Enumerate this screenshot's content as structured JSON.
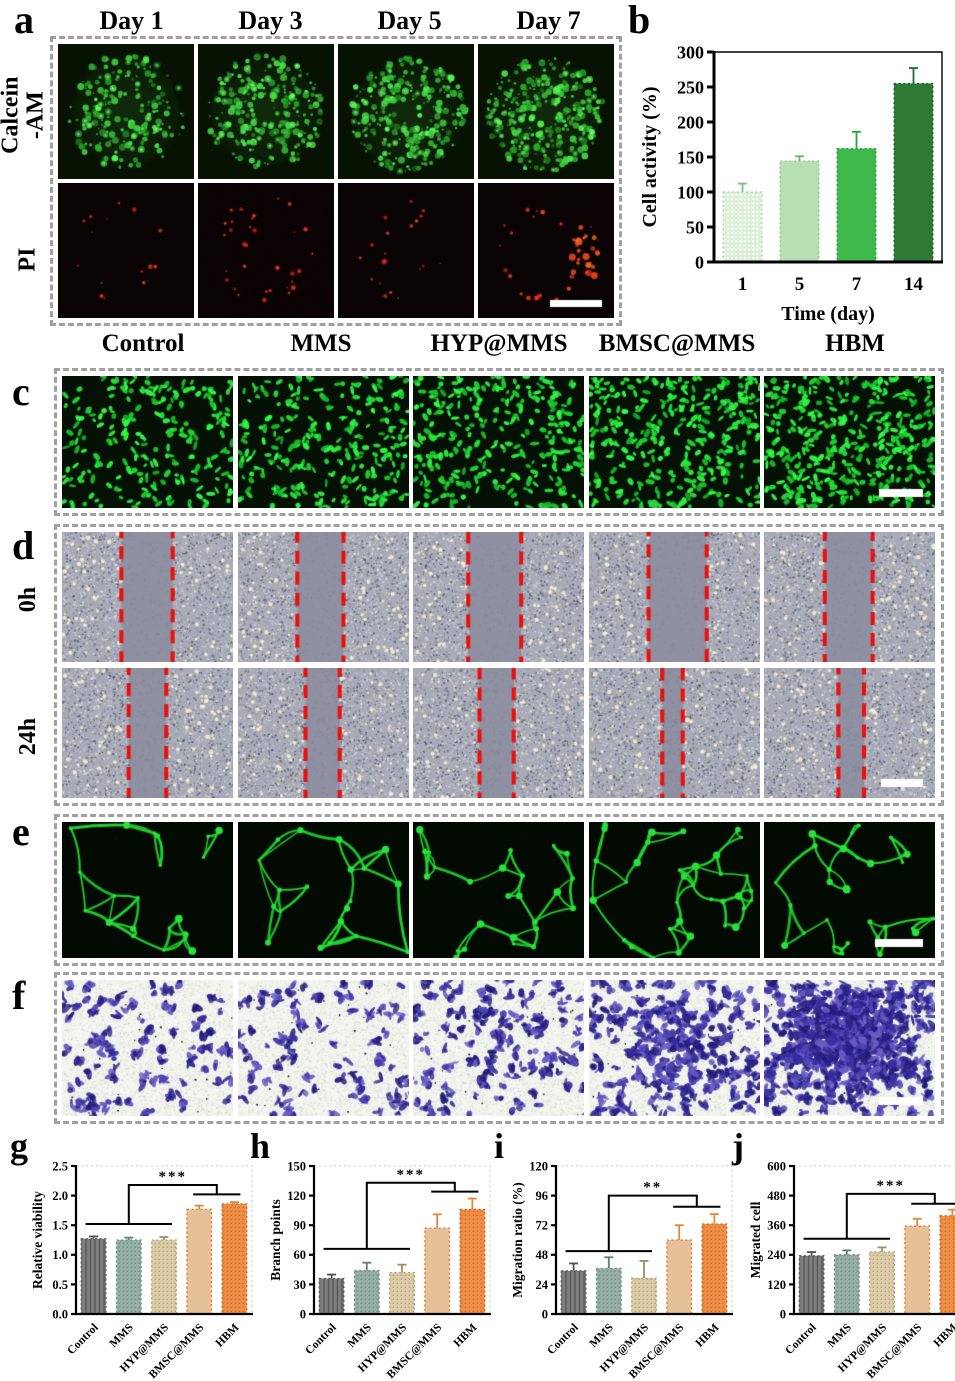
{
  "letters": {
    "a": "a",
    "b": "b",
    "c": "c",
    "d": "d",
    "e": "e",
    "f": "f",
    "g": "g",
    "h": "h",
    "i": "i",
    "j": "j"
  },
  "panel_a": {
    "column_labels": [
      "Day 1",
      "Day 3",
      "Day 5",
      "Day 7"
    ],
    "row_label_calcein_line1": "Calcein",
    "row_label_calcein_line2": "-AM",
    "row_label_pi": "PI"
  },
  "group_labels": [
    "Control",
    "MMS",
    "HYP@MMS",
    "BMSC@MMS",
    "HBM"
  ],
  "panel_d": {
    "row_labels": [
      "0h",
      "24h"
    ]
  },
  "accent_colors": {
    "wound_edge_red": "#ea0f0c",
    "scale_bar": "#ffffff",
    "dashed_border": "#a0a0a0"
  },
  "chart_data": [
    {
      "panel": "b",
      "type": "bar",
      "categories": [
        "1",
        "5",
        "7",
        "14"
      ],
      "values": [
        100,
        144,
        162,
        255
      ],
      "errors": [
        12,
        7,
        24,
        22
      ],
      "title": "",
      "xlabel": "Time (day)",
      "ylabel": "Cell activity (%)",
      "ylim": [
        0,
        300
      ],
      "yticks": [
        "0",
        "50",
        "100",
        "150",
        "200",
        "250",
        "300"
      ],
      "colors": [
        "#ddefd8",
        "#b7dfb2",
        "#3cb94a",
        "#2c7a33"
      ],
      "strokes": [
        "#a9d8a0",
        "#8cc98a",
        "#2f9e3b",
        "#1f5c26"
      ],
      "err_colors": [
        "#7fbf7f",
        "#63b863",
        "#28a332",
        "#1f6b28"
      ],
      "patterns": [
        "dl",
        "none",
        "none",
        "none"
      ],
      "sig": null
    },
    {
      "panel": "g",
      "type": "bar",
      "categories": [
        "Control",
        "MMS",
        "HYP@MMS",
        "BMSC@MMS",
        "HBM"
      ],
      "values": [
        1.27,
        1.25,
        1.25,
        1.77,
        1.86
      ],
      "errors": [
        0.04,
        0.04,
        0.05,
        0.06,
        0.03
      ],
      "title": "",
      "xlabel": "",
      "ylabel": "Relative viability",
      "ylim": [
        0,
        2.5
      ],
      "yticks": [
        "0.0",
        "0.5",
        "1.0",
        "1.5",
        "2.0",
        "2.5"
      ],
      "colors": [
        "#7f7f7f",
        "#95aea6",
        "#dbcba5",
        "#e6c098",
        "#f08d44"
      ],
      "strokes": [
        "#5a5a5a",
        "#6e8c82",
        "#b3a076",
        "#e07b2a",
        "#cf6716"
      ],
      "err_colors": [
        "#4f4f4f",
        "#5f7d74",
        "#a08d62",
        "#e2873b",
        "#e2873b"
      ],
      "patterns": [
        "vs",
        "dt",
        "dt",
        "none",
        "dt"
      ],
      "sig": {
        "label": "***",
        "low": [
          0,
          2
        ],
        "high": [
          3,
          4
        ],
        "lowY": 1.52,
        "highY": 2.02,
        "topY": 2.18
      }
    },
    {
      "panel": "h",
      "type": "bar",
      "categories": [
        "Control",
        "MMS",
        "HYP@MMS",
        "BMSC@MMS",
        "HBM"
      ],
      "values": [
        36,
        44,
        42,
        87,
        106
      ],
      "errors": [
        4,
        8,
        8,
        14,
        11
      ],
      "title": "",
      "xlabel": "",
      "ylabel": "Branch points",
      "ylim": [
        0,
        150
      ],
      "yticks": [
        "0",
        "30",
        "60",
        "90",
        "120",
        "150"
      ],
      "colors": [
        "#7f7f7f",
        "#95aea6",
        "#dbcba5",
        "#e6c098",
        "#f08d44"
      ],
      "strokes": [
        "#5a5a5a",
        "#6e8c82",
        "#b3a076",
        "#e07b2a",
        "#cf6716"
      ],
      "err_colors": [
        "#4f4f4f",
        "#5f7d74",
        "#a08d62",
        "#e2873b",
        "#e2873b"
      ],
      "patterns": [
        "vs",
        "dt",
        "dt",
        "none",
        "dt"
      ],
      "sig": {
        "label": "***",
        "low": [
          0,
          2
        ],
        "high": [
          3,
          4
        ],
        "lowY": 66,
        "highY": 124,
        "topY": 133
      }
    },
    {
      "panel": "i",
      "type": "bar",
      "categories": [
        "Control",
        "MMS",
        "HYP@MMS",
        "BMSC@MMS",
        "HBM"
      ],
      "values": [
        35,
        37,
        29,
        60,
        73
      ],
      "errors": [
        6,
        9,
        14,
        12,
        8
      ],
      "title": "",
      "xlabel": "",
      "ylabel": "Migration ratio (%)",
      "ylim": [
        0,
        120
      ],
      "yticks": [
        "0",
        "24",
        "48",
        "72",
        "96",
        "120"
      ],
      "colors": [
        "#7f7f7f",
        "#95aea6",
        "#dbcba5",
        "#e6c098",
        "#f08d44"
      ],
      "strokes": [
        "#5a5a5a",
        "#6e8c82",
        "#b3a076",
        "#e07b2a",
        "#cf6716"
      ],
      "err_colors": [
        "#4f4f4f",
        "#5f7d74",
        "#a08d62",
        "#e2873b",
        "#e2873b"
      ],
      "patterns": [
        "vs",
        "dt",
        "dt",
        "none",
        "dt"
      ],
      "sig": {
        "label": "**",
        "low": [
          0,
          2
        ],
        "high": [
          3,
          4
        ],
        "lowY": 51,
        "highY": 87,
        "topY": 96
      }
    },
    {
      "panel": "j",
      "type": "bar",
      "categories": [
        "Control",
        "MMS",
        "HYP@MMS",
        "BMSC@MMS",
        "HBM"
      ],
      "values": [
        236,
        240,
        252,
        356,
        398
      ],
      "errors": [
        15,
        18,
        18,
        30,
        25
      ],
      "title": "",
      "xlabel": "",
      "ylabel": "Migrated cell",
      "ylim": [
        0,
        600
      ],
      "yticks": [
        "0",
        "120",
        "240",
        "360",
        "480",
        "600"
      ],
      "colors": [
        "#7f7f7f",
        "#95aea6",
        "#dbcba5",
        "#e6c098",
        "#f08d44"
      ],
      "strokes": [
        "#5a5a5a",
        "#6e8c82",
        "#b3a076",
        "#e07b2a",
        "#cf6716"
      ],
      "err_colors": [
        "#4f4f4f",
        "#5f7d74",
        "#a08d62",
        "#e2873b",
        "#e2873b"
      ],
      "patterns": [
        "vs",
        "dt",
        "dt",
        "none",
        "dt"
      ],
      "sig": {
        "label": "***",
        "low": [
          0,
          2
        ],
        "high": [
          3,
          4
        ],
        "lowY": 305,
        "highY": 447,
        "topY": 487
      }
    }
  ]
}
